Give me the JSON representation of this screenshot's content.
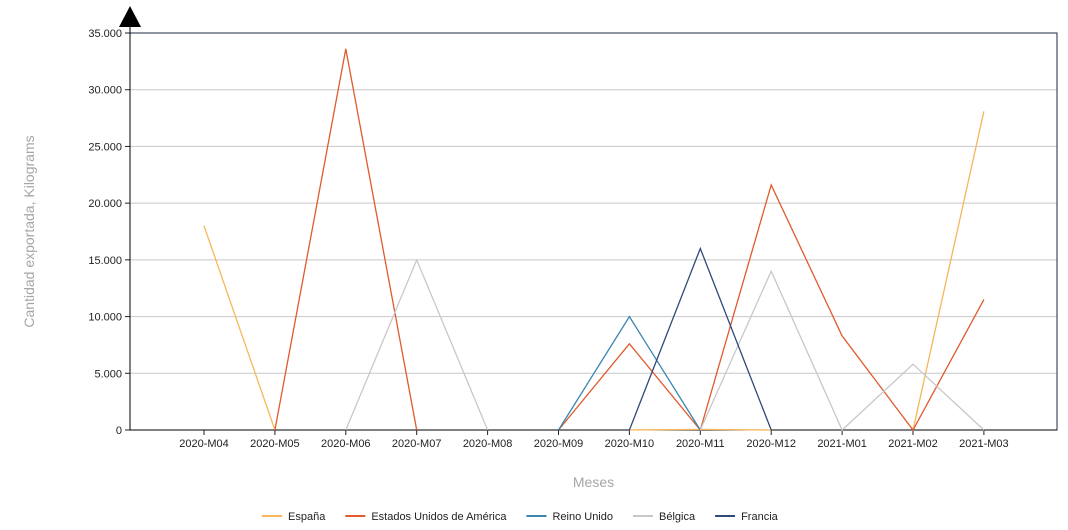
{
  "chart_data": {
    "type": "line",
    "title": "",
    "xlabel": "Meses",
    "ylabel": "Cantidad exportada, Kilograms",
    "ylim": [
      0,
      35000
    ],
    "yticks": [
      0,
      5000,
      10000,
      15000,
      20000,
      25000,
      30000,
      35000
    ],
    "ytick_labels": [
      "0",
      "5.000",
      "10.000",
      "15.000",
      "20.000",
      "25.000",
      "30.000",
      "35.000"
    ],
    "categories": [
      "2020-M04",
      "2020-M05",
      "2020-M06",
      "2020-M07",
      "2020-M08",
      "2020-M09",
      "2020-M10",
      "2020-M11",
      "2020-M12",
      "2021-M01",
      "2021-M02",
      "2021-M03"
    ],
    "grid": "horizontal",
    "legend_position": "bottom",
    "series": [
      {
        "name": "España",
        "color": "#f5b75a",
        "values": [
          18000,
          0,
          null,
          null,
          null,
          null,
          0,
          50,
          0,
          null,
          0,
          28100
        ]
      },
      {
        "name": "Estados Unidos de América",
        "color": "#e05a2c",
        "values": [
          null,
          0,
          33600,
          0,
          null,
          0,
          7600,
          0,
          21600,
          8300,
          0,
          11500
        ]
      },
      {
        "name": "Reino Unido",
        "color": "#3a86b0",
        "values": [
          null,
          null,
          null,
          null,
          null,
          0,
          10000,
          0,
          null,
          null,
          null,
          null
        ]
      },
      {
        "name": "Bélgica",
        "color": "#c8c8c8",
        "values": [
          null,
          null,
          0,
          15000,
          0,
          null,
          null,
          0,
          14000,
          0,
          5800,
          0
        ]
      },
      {
        "name": "Francia",
        "color": "#2e4a78",
        "values": [
          null,
          null,
          null,
          null,
          null,
          null,
          0,
          16000,
          0,
          null,
          null,
          null
        ]
      }
    ]
  }
}
